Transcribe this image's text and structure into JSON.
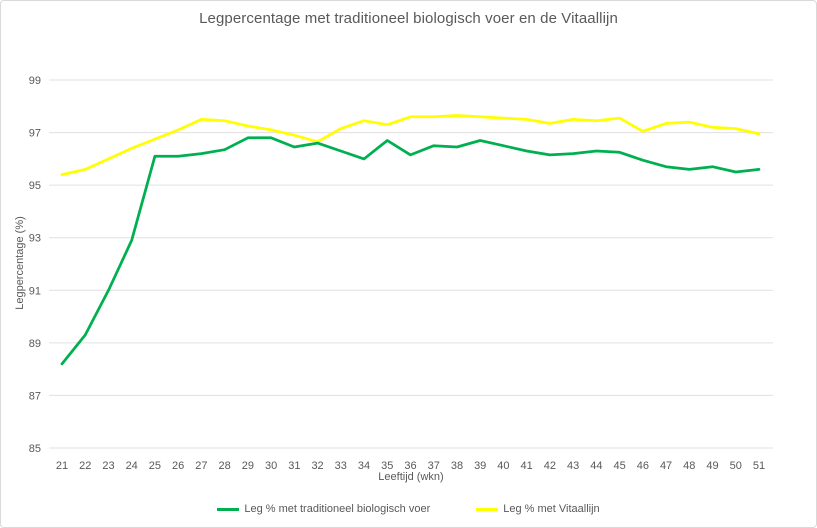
{
  "chart": {
    "title": "Legpercentage met traditioneel biologisch voer en de Vitaallijn",
    "x_axis_label": "Leeftijd (wkn)",
    "y_axis_label": "Legpercentage (%)",
    "legend": [
      "Leg % met traditioneel biologisch voer",
      "Leg % met Vitaallijn"
    ]
  },
  "chart_data": {
    "type": "line",
    "title": "Legpercentage met traditioneel biologisch voer en de Vitaallijn",
    "xlabel": "Leeftijd (wkn)",
    "ylabel": "Legpercentage (%)",
    "categories": [
      21,
      22,
      23,
      24,
      25,
      26,
      27,
      28,
      29,
      30,
      31,
      32,
      33,
      34,
      35,
      36,
      37,
      38,
      39,
      40,
      41,
      42,
      43,
      44,
      45,
      46,
      47,
      48,
      49,
      50,
      51
    ],
    "series": [
      {
        "name": "Leg % met traditioneel biologisch voer",
        "color": "#00b050",
        "values": [
          88.2,
          89.3,
          91.0,
          92.9,
          96.1,
          96.1,
          96.2,
          96.35,
          96.8,
          96.8,
          96.45,
          96.6,
          96.3,
          96.0,
          96.7,
          96.15,
          96.5,
          96.45,
          96.7,
          96.5,
          96.3,
          96.15,
          96.2,
          96.3,
          96.25,
          95.95,
          95.7,
          95.6,
          95.7,
          95.5,
          95.6
        ]
      },
      {
        "name": "Leg % met Vitaallijn",
        "color": "#ffff00",
        "values": [
          95.4,
          95.6,
          96.0,
          96.4,
          96.75,
          97.1,
          97.5,
          97.45,
          97.25,
          97.1,
          96.9,
          96.65,
          97.15,
          97.45,
          97.3,
          97.6,
          97.6,
          97.65,
          97.6,
          97.55,
          97.5,
          97.35,
          97.5,
          97.45,
          97.55,
          97.05,
          97.35,
          97.4,
          97.2,
          97.15,
          96.95
        ]
      }
    ],
    "ylim": [
      85,
      99
    ],
    "y_ticks": [
      85,
      87,
      89,
      91,
      93,
      95,
      97,
      99
    ],
    "grid": "horizontal",
    "legend_position": "bottom"
  },
  "colors": {
    "text": "#595959",
    "gridline": "#e0e0e0",
    "border": "#d9d9d9",
    "background": "#ffffff",
    "series_green": "#00b050",
    "series_yellow": "#ffff00"
  }
}
